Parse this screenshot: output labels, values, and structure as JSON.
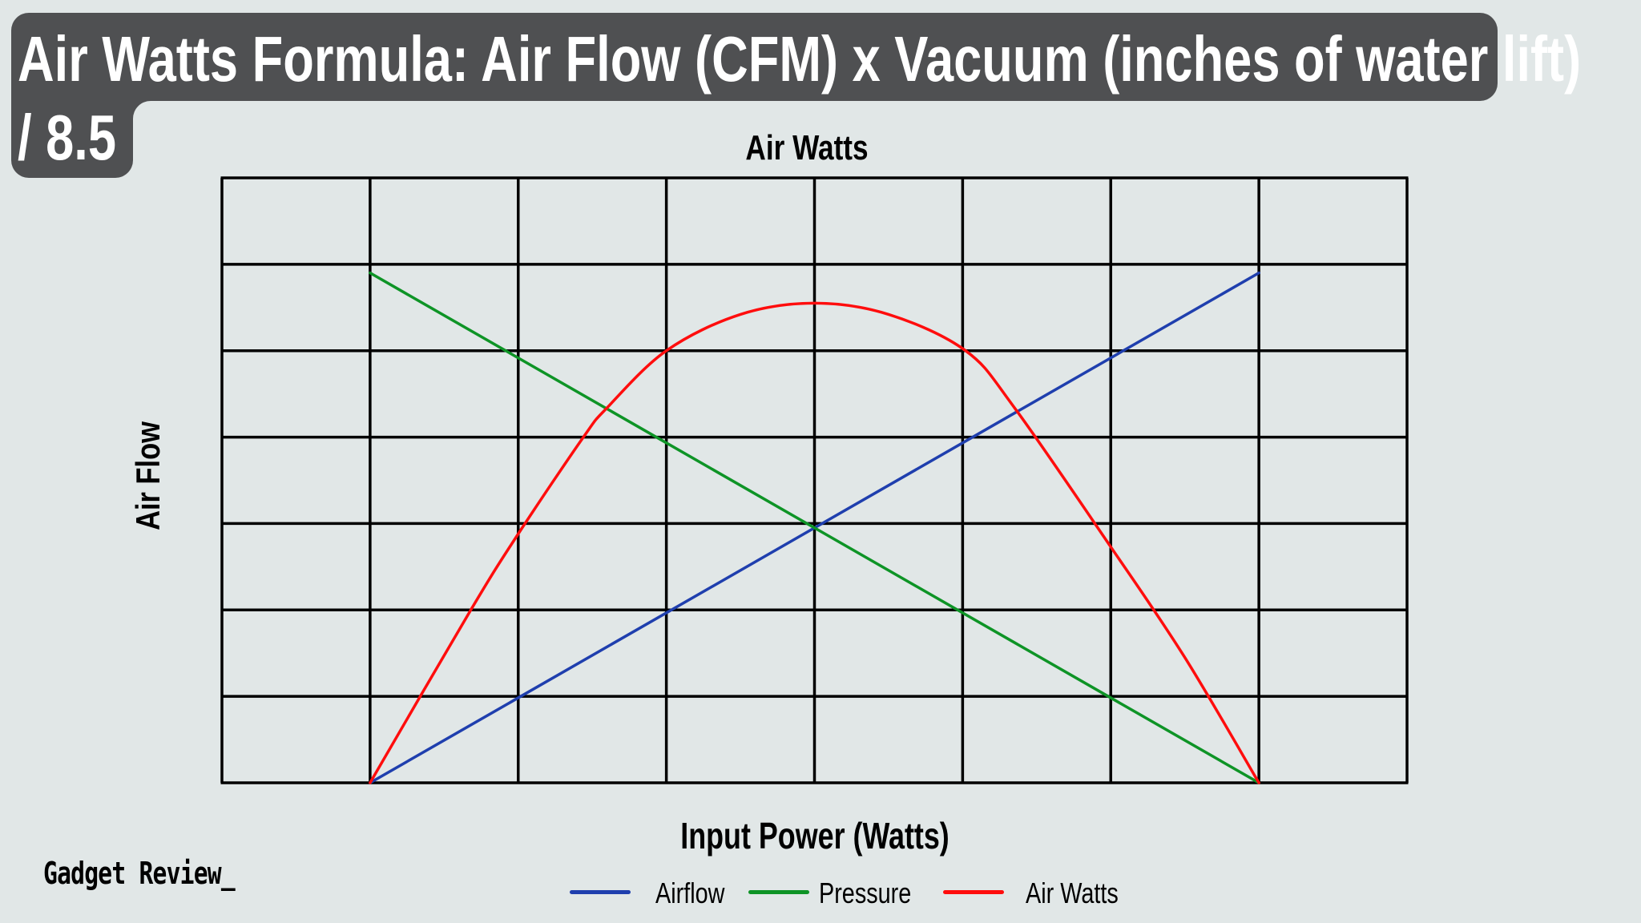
{
  "header": {
    "title_line1": "Air Watts Formula: Air Flow (CFM) x Vacuum (inches of water lift)",
    "title_line2": "/ 8.5"
  },
  "brand": {
    "name": "Gadget Review_"
  },
  "colors": {
    "background": "#e1e7e7",
    "title_box": "#4f5052",
    "grid": "#000000",
    "airflow": "#1f3fae",
    "pressure": "#0e9426",
    "air_watts": "#ff0d0d"
  },
  "legend": [
    {
      "label": "Airflow",
      "color": "#1f3fae"
    },
    {
      "label": "Pressure",
      "color": "#0e9426"
    },
    {
      "label": "Air Watts",
      "color": "#ff0d0d"
    }
  ],
  "chart_data": {
    "type": "line",
    "title": "Air Watts",
    "xlabel": "Input Power (Watts)",
    "ylabel": "Air Flow",
    "xlim": [
      0,
      8
    ],
    "ylim": [
      0,
      7
    ],
    "grid": true,
    "x_gridlines": 8,
    "y_gridlines": 7,
    "tick_labels": false,
    "legend_position": "bottom",
    "series": [
      {
        "name": "Airflow",
        "color": "#1f3fae",
        "x": [
          1,
          7
        ],
        "y": [
          0,
          5.9
        ]
      },
      {
        "name": "Pressure",
        "color": "#0e9426",
        "x": [
          1,
          7
        ],
        "y": [
          5.9,
          0
        ]
      },
      {
        "name": "Air Watts",
        "color": "#ff0d0d",
        "x": [
          1,
          1.68,
          2,
          2.44,
          2.6,
          3,
          3.5,
          4,
          4.5,
          5.02,
          5.35,
          6,
          6.5,
          7
        ],
        "y": [
          0,
          2.0,
          2.88,
          4.0,
          4.34,
          5.0,
          5.42,
          5.55,
          5.42,
          5.0,
          4.34,
          2.73,
          1.45,
          0
        ]
      }
    ]
  }
}
